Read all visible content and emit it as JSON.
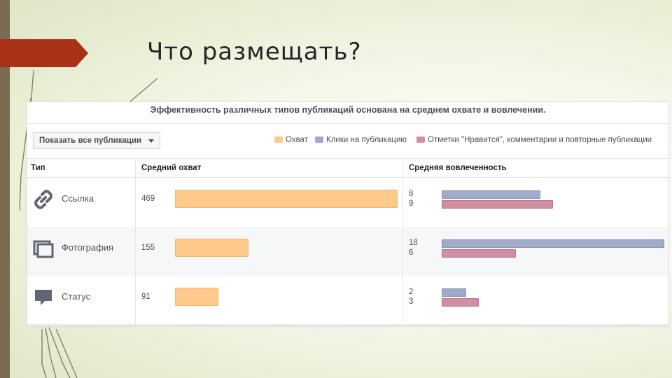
{
  "slide": {
    "title": "Что размещать?"
  },
  "panel": {
    "title": "Эффективность различных типов публикаций основана на среднем охвате и вовлечении.",
    "filter_label": "Показать все публикации",
    "legend": [
      {
        "label": "Охват",
        "color": "#fdca8b"
      },
      {
        "label": "Клики на публикацию",
        "color": "#a0aac9"
      },
      {
        "label": "Отметки \"Нравится\", комментарии и повторные публикации",
        "color": "#d08ea3"
      }
    ],
    "columns": [
      "Тип",
      "Средний охват",
      "Средняя вовлеченность"
    ],
    "rows": [
      {
        "type": "Ссылка",
        "icon": "link-icon",
        "reach": "469",
        "clicks": "8",
        "likes": "9"
      },
      {
        "type": "Фотография",
        "icon": "photo-icon",
        "reach": "155",
        "clicks": "18",
        "likes": "6"
      },
      {
        "type": "Статус",
        "icon": "status-icon",
        "reach": "91",
        "clicks": "2",
        "likes": "3"
      }
    ]
  },
  "colors": {
    "arrow": "#a83118",
    "left_bar": "#7a6b50",
    "reach": "#fdca8b",
    "clicks": "#a0aac9",
    "likes": "#d08ea3"
  }
}
